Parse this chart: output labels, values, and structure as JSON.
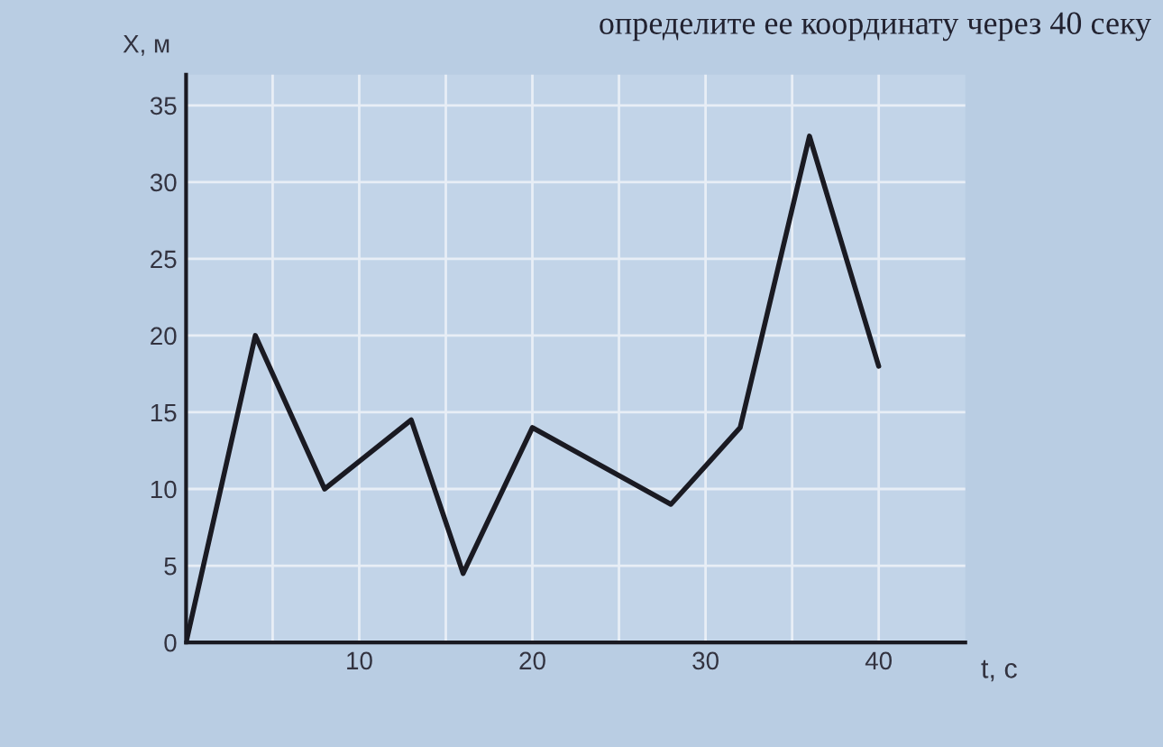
{
  "chart_data": {
    "type": "line",
    "title": "определите ее координату через 40 секу",
    "xlabel": "t, c",
    "ylabel": "X, м",
    "x": [
      0,
      4,
      8,
      13,
      16,
      20,
      28,
      32,
      36,
      40
    ],
    "series": [
      {
        "color": "#1a1a22",
        "values": [
          0,
          20,
          10,
          14.5,
          4.5,
          14,
          9,
          14,
          33,
          18
        ]
      }
    ],
    "xlim": [
      0,
      45
    ],
    "ylim": [
      0,
      37
    ],
    "xticks": [
      {
        "value": 5,
        "label": null
      },
      10,
      {
        "value": 15,
        "label": null
      },
      20,
      {
        "value": 25,
        "label": null
      },
      30,
      {
        "value": 35,
        "label": null
      },
      40
    ],
    "yticks": [
      0,
      5,
      10,
      15,
      20,
      25,
      30,
      35
    ],
    "grid": true,
    "marker": "none",
    "line_style": "solid"
  }
}
